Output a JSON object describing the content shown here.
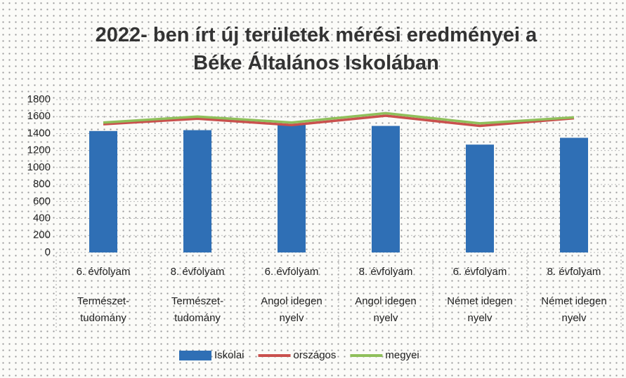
{
  "chart_data": {
    "type": "bar_line",
    "title": "2022- ben írt új területek mérési eredményei a Béke Általános Iskolában",
    "categories": [
      "6. évfolyam",
      "8. évfolyam",
      "6. évfolyam",
      "8. évfolyam",
      "6. évfolyam",
      "8. évfolyam"
    ],
    "groups": [
      "Természet-tudomány",
      "Természet-tudomány",
      "Angol idegen nyelv",
      "Angol idegen nyelv",
      "Német idegen nyelv",
      "Német idegen nyelv"
    ],
    "series": [
      {
        "name": "Iskolai",
        "type": "bar",
        "color": "#2f6fb5",
        "values": [
          1430,
          1440,
          1510,
          1490,
          1270,
          1350
        ]
      },
      {
        "name": "országos",
        "type": "line",
        "color": "#c9504d",
        "values": [
          1510,
          1575,
          1500,
          1610,
          1490,
          1580
        ]
      },
      {
        "name": "megyei",
        "type": "line",
        "color": "#8fbf5a",
        "values": [
          1530,
          1600,
          1530,
          1640,
          1520,
          1590
        ]
      }
    ],
    "ylim": [
      0,
      1800
    ],
    "yticks": [
      0,
      200,
      400,
      600,
      800,
      1000,
      1200,
      1400,
      1600,
      1800
    ],
    "grid": true,
    "legend": "bottom"
  }
}
